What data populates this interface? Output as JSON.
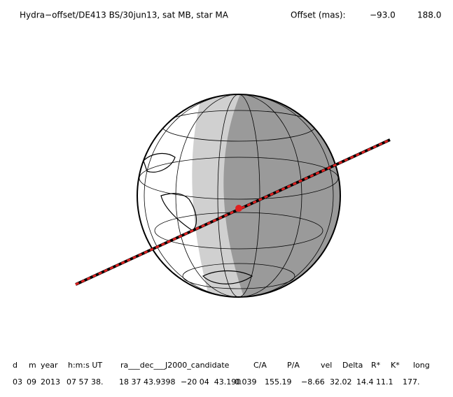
{
  "header": {
    "title": "Hydra−offset/DE413 BS/30jun13, sat MB, star MA",
    "offset_label": "Offset (mas):",
    "offset_x": "−93.0",
    "offset_y": "188.0"
  },
  "table": {
    "columns": [
      "d",
      "m",
      "year",
      "h:m:s UT",
      "ra___dec___J2000_candidate",
      "C/A",
      "P/A",
      "vel",
      "Delta",
      "R*",
      "K*",
      "long"
    ],
    "row": [
      "03",
      "09",
      "2013",
      "07 57 38.",
      "18 37 43.9398",
      "−20 04  43.190",
      "0.039",
      "155.19",
      "−8.66",
      "32.02",
      "14.4",
      "11.1",
      "177."
    ]
  }
}
